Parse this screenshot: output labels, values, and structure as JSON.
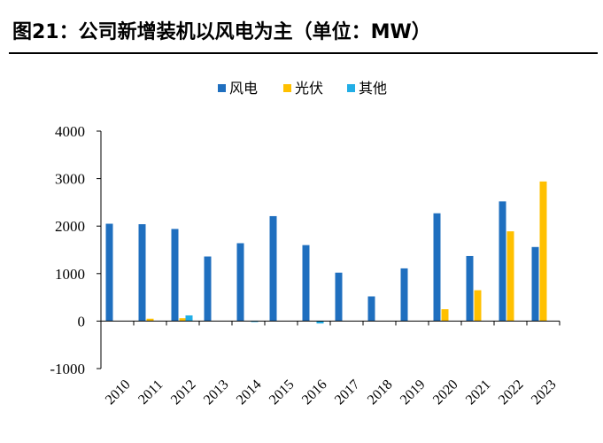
{
  "header": {
    "title": "图21：公司新增装机以风电为主（单位：MW）"
  },
  "chart_data": {
    "type": "bar",
    "title": "图21：公司新增装机以风电为主（单位：MW）",
    "xlabel": "",
    "ylabel": "",
    "categories": [
      "2010",
      "2011",
      "2012",
      "2013",
      "2014",
      "2015",
      "2016",
      "2017",
      "2018",
      "2019",
      "2020",
      "2021",
      "2022",
      "2023"
    ],
    "series": [
      {
        "name": "风电",
        "color": "#1f6fbf",
        "values": [
          2050,
          2040,
          1940,
          1360,
          1640,
          2210,
          1600,
          1020,
          520,
          1110,
          2270,
          1370,
          2520,
          1560
        ]
      },
      {
        "name": "光伏",
        "color": "#ffc000",
        "values": [
          0,
          50,
          60,
          0,
          0,
          0,
          0,
          0,
          0,
          0,
          250,
          650,
          1890,
          2940
        ]
      },
      {
        "name": "其他",
        "color": "#22aee6",
        "values": [
          0,
          0,
          120,
          0,
          -20,
          0,
          -50,
          0,
          0,
          0,
          0,
          0,
          0,
          0
        ]
      }
    ],
    "ylim": [
      -1000,
      4000
    ],
    "yticks": [
      -1000,
      0,
      1000,
      2000,
      3000,
      4000
    ],
    "grid": false,
    "legend_position": "top-center"
  }
}
